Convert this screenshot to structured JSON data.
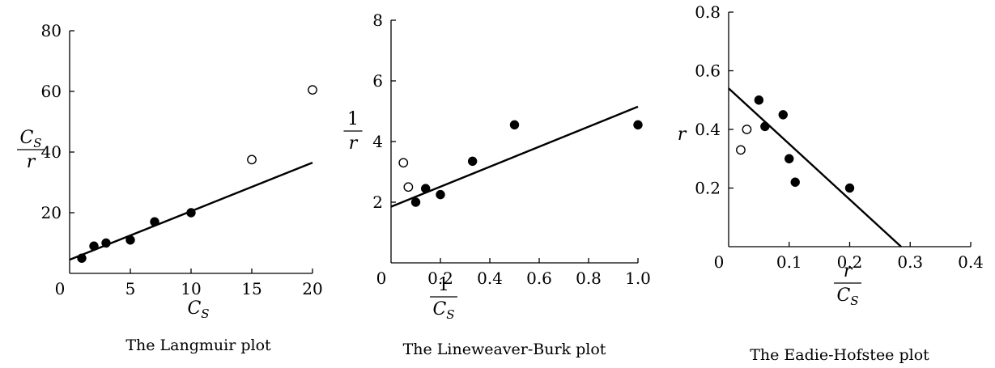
{
  "chart_data": [
    {
      "type": "scatter",
      "caption": "The Langmuir plot",
      "xlabel": "C_S",
      "ylabel": "C_S / r",
      "xlim": [
        0,
        20
      ],
      "ylim": [
        0,
        80
      ],
      "x_ticks": [
        "0",
        "5",
        "10",
        "15",
        "20"
      ],
      "y_ticks": [
        "20",
        "40",
        "60",
        "80"
      ],
      "series": [
        {
          "marker": "filled",
          "x": [
            1,
            2,
            3,
            5,
            7,
            10
          ],
          "y": [
            5,
            9,
            10,
            11,
            17,
            20
          ]
        },
        {
          "marker": "open",
          "x": [
            15,
            20
          ],
          "y": [
            37.5,
            60.5
          ]
        }
      ],
      "fit_line": {
        "x": [
          0,
          20
        ],
        "y": [
          4.5,
          36.5
        ]
      }
    },
    {
      "type": "scatter",
      "caption": "The Lineweaver-Burk plot",
      "xlabel": "1 / C_S",
      "ylabel": "1 / r",
      "xlim": [
        0,
        1.0
      ],
      "ylim": [
        0,
        8
      ],
      "x_ticks": [
        "0",
        "0.2",
        "0.4",
        "0.6",
        "0.8",
        "1.0"
      ],
      "y_ticks": [
        "2",
        "4",
        "6",
        "8"
      ],
      "series": [
        {
          "marker": "filled",
          "x": [
            0.1,
            0.14,
            0.2,
            0.33,
            0.5,
            1.0
          ],
          "y": [
            2.0,
            2.45,
            2.25,
            3.35,
            4.55,
            4.55
          ]
        },
        {
          "marker": "open",
          "x": [
            0.05,
            0.07
          ],
          "y": [
            3.3,
            2.5
          ]
        }
      ],
      "fit_line": {
        "x": [
          0,
          1.0
        ],
        "y": [
          1.85,
          5.15
        ]
      }
    },
    {
      "type": "scatter",
      "caption": "The Eadie-Hofstee plot",
      "xlabel": "r / C_S",
      "ylabel": "r",
      "xlim": [
        0,
        0.4
      ],
      "ylim": [
        0,
        0.8
      ],
      "x_ticks": [
        "0",
        "0.1",
        "0.2",
        "0.3",
        "0.4"
      ],
      "y_ticks": [
        "0.2",
        "0.4",
        "0.6",
        "0.8"
      ],
      "series": [
        {
          "marker": "filled",
          "x": [
            0.05,
            0.06,
            0.09,
            0.1,
            0.11,
            0.2
          ],
          "y": [
            0.5,
            0.41,
            0.45,
            0.3,
            0.22,
            0.2
          ]
        },
        {
          "marker": "open",
          "x": [
            0.02,
            0.03
          ],
          "y": [
            0.33,
            0.4
          ]
        }
      ],
      "fit_line": {
        "x": [
          0,
          0.285
        ],
        "y": [
          0.54,
          0.0
        ]
      }
    }
  ]
}
